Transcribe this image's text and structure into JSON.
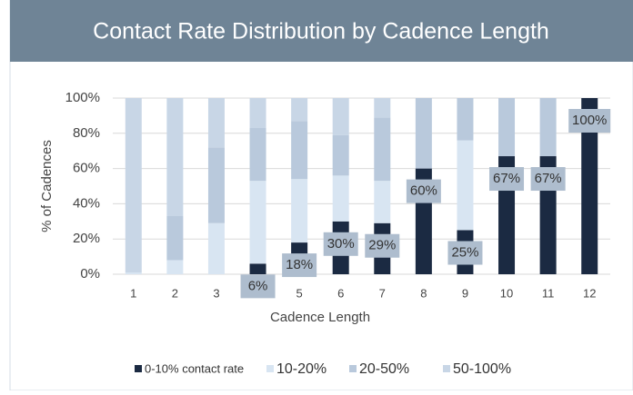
{
  "chart_data": {
    "type": "stacked_bar",
    "title": "Contact Rate Distribution by Cadence Length",
    "x_label": "Cadence Length",
    "y_label": "% of Cadences",
    "categories": [
      "1",
      "2",
      "3",
      "4",
      "5",
      "6",
      "7",
      "8",
      "9",
      "10",
      "11",
      "12"
    ],
    "series": [
      {
        "name": "0-10% contact rate",
        "color": "#1b2a42",
        "values": [
          0,
          0,
          0,
          6,
          18,
          30,
          29,
          60,
          25,
          67,
          67,
          100
        ],
        "value_labels": [
          null,
          null,
          null,
          "6%",
          "18%",
          "30%",
          "29%",
          "60%",
          "25%",
          "67%",
          "67%",
          "100%"
        ]
      },
      {
        "name": "10-20%",
        "color": "#d8e5f2",
        "values": [
          1,
          8,
          29,
          47,
          36,
          26,
          24,
          0,
          51,
          0,
          0,
          0
        ]
      },
      {
        "name": "20-50%",
        "color": "#b9c9dc",
        "values": [
          0,
          25,
          43,
          30,
          33,
          23,
          36,
          40,
          24,
          33,
          33,
          0
        ]
      },
      {
        "name": "50-100%",
        "color": "#c8d6e6",
        "values": [
          99,
          67,
          28,
          17,
          13,
          21,
          11,
          0,
          0,
          0,
          0,
          0
        ]
      }
    ],
    "ylim": [
      0,
      100
    ],
    "yticks": [
      {
        "value": 0,
        "label": "0%"
      },
      {
        "value": 20,
        "label": "20%"
      },
      {
        "value": 40,
        "label": "40%"
      },
      {
        "value": 60,
        "label": "60%"
      },
      {
        "value": 80,
        "label": "80%"
      },
      {
        "value": 100,
        "label": "100%"
      }
    ],
    "grid": true,
    "legend": "bottom"
  }
}
